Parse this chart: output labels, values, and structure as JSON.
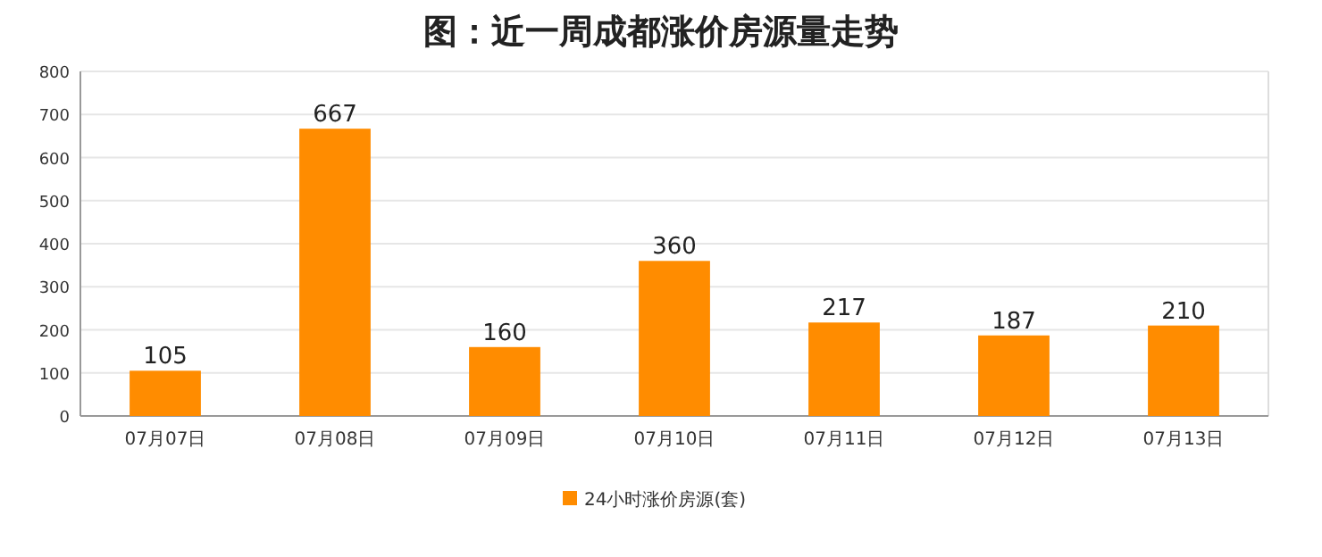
{
  "chart_data": {
    "type": "bar",
    "title": "图：近一周成都涨价房源量走势",
    "categories": [
      "07月07日",
      "07月08日",
      "07月09日",
      "07月10日",
      "07月11日",
      "07月12日",
      "07月13日"
    ],
    "series": [
      {
        "name": "24小时涨价房源(套)",
        "color": "#ff8c00",
        "values": [
          105,
          667,
          160,
          360,
          217,
          187,
          210
        ]
      }
    ],
    "ylim": [
      0,
      800
    ],
    "yticks": [
      0,
      100,
      200,
      300,
      400,
      500,
      600,
      700,
      800
    ],
    "grid": "y",
    "legend": "bottom",
    "data_labels": true
  }
}
